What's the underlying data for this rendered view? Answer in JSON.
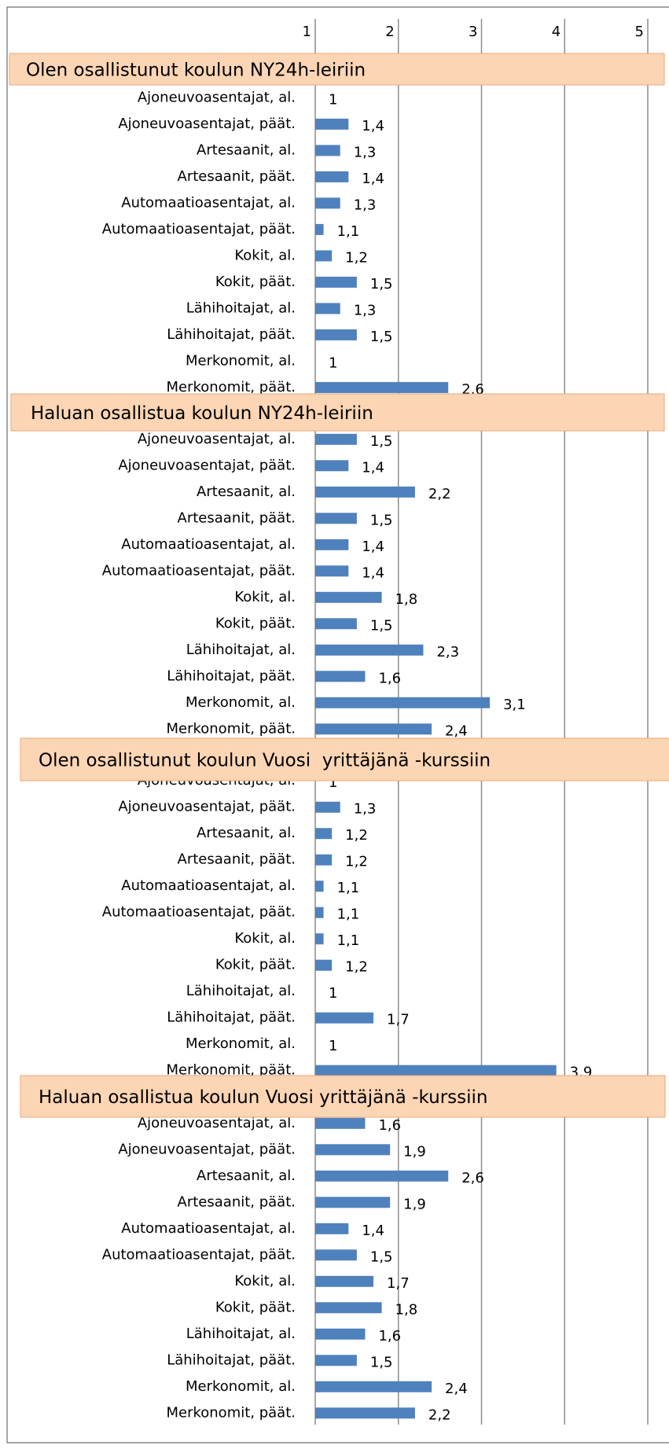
{
  "axis": {
    "xlim": [
      1,
      5
    ],
    "xticks": [
      1,
      2,
      3,
      4,
      5
    ]
  },
  "chart_data": [
    {
      "type": "bar",
      "orientation": "horizontal",
      "color": "#4f81bd",
      "title": "Olen osallistunut koulun NY24h-leiriin",
      "categories": [
        "Ajoneuvoasentajat, al.",
        "Ajoneuvoasentajat, päät.",
        "Artesaanit, al.",
        "Artesaanit, päät.",
        "Automaatioasentajat, al.",
        "Automaatioasentajat, päät.",
        "Kokit, al.",
        "Kokit, päät.",
        "Lähihoitajat, al.",
        "Lähihoitajat, päät.",
        "Merkonomit, al.",
        "Merkonomit, päät."
      ],
      "values": [
        1,
        1.4,
        1.3,
        1.4,
        1.3,
        1.1,
        1.2,
        1.5,
        1.3,
        1.5,
        1,
        2.6
      ],
      "value_labels": [
        "1",
        "1,4",
        "1,3",
        "1,4",
        "1,3",
        "1,1",
        "1,2",
        "1,5",
        "1,3",
        "1,5",
        "1",
        "2,6"
      ]
    },
    {
      "type": "bar",
      "orientation": "horizontal",
      "color": "#4f81bd",
      "title": "Haluan osallistua koulun NY24h-leiriin",
      "categories": [
        "Ajoneuvoasentajat, al.",
        "Ajoneuvoasentajat, päät.",
        "Artesaanit, al.",
        "Artesaanit, päät.",
        "Automaatioasentajat, al.",
        "Automaatioasentajat, päät.",
        "Kokit, al.",
        "Kokit, päät.",
        "Lähihoitajat, al.",
        "Lähihoitajat, päät.",
        "Merkonomit, al.",
        "Merkonomit, päät."
      ],
      "values": [
        1.5,
        1.4,
        2.2,
        1.5,
        1.4,
        1.4,
        1.8,
        1.5,
        2.3,
        1.6,
        3.1,
        2.4
      ],
      "value_labels": [
        "1,5",
        "1,4",
        "2,2",
        "1,5",
        "1,4",
        "1,4",
        "1,8",
        "1,5",
        "2,3",
        "1,6",
        "3,1",
        "2,4"
      ]
    },
    {
      "type": "bar",
      "orientation": "horizontal",
      "color": "#4f81bd",
      "title": "Olen osallistunut koulun Vuosi  yrittäjänä -kurssiin",
      "categories": [
        "Ajoneuvoasentajat, al.",
        "Ajoneuvoasentajat, päät.",
        "Artesaanit, al.",
        "Artesaanit, päät.",
        "Automaatioasentajat, al.",
        "Automaatioasentajat, päät.",
        "Kokit, al.",
        "Kokit, päät.",
        "Lähihoitajat, al.",
        "Lähihoitajat, päät.",
        "Merkonomit, al.",
        "Merkonomit, päät."
      ],
      "values": [
        1,
        1.3,
        1.2,
        1.2,
        1.1,
        1.1,
        1.1,
        1.2,
        1,
        1.7,
        1,
        3.9
      ],
      "value_labels": [
        "1",
        "1,3",
        "1,2",
        "1,2",
        "1,1",
        "1,1",
        "1,1",
        "1,2",
        "1",
        "1,7",
        "1",
        "3,9"
      ]
    },
    {
      "type": "bar",
      "orientation": "horizontal",
      "color": "#4f81bd",
      "title": "Haluan osallistua koulun Vuosi yrittäjänä -kurssiin",
      "categories": [
        "Ajoneuvoasentajat, al.",
        "Ajoneuvoasentajat, päät.",
        "Artesaanit, al.",
        "Artesaanit, päät.",
        "Automaatioasentajat, al.",
        "Automaatioasentajat, päät.",
        "Kokit, al.",
        "Kokit, päät.",
        "Lähihoitajat, al.",
        "Lähihoitajat, päät.",
        "Merkonomit, al.",
        "Merkonomit, päät."
      ],
      "values": [
        1.6,
        1.9,
        2.6,
        1.9,
        1.4,
        1.5,
        1.7,
        1.8,
        1.6,
        1.5,
        2.4,
        2.2
      ],
      "value_labels": [
        "1,6",
        "1,9",
        "2,6",
        "1,9",
        "1,4",
        "1,5",
        "1,7",
        "1,8",
        "1,6",
        "1,5",
        "2,4",
        "2,2"
      ]
    }
  ]
}
